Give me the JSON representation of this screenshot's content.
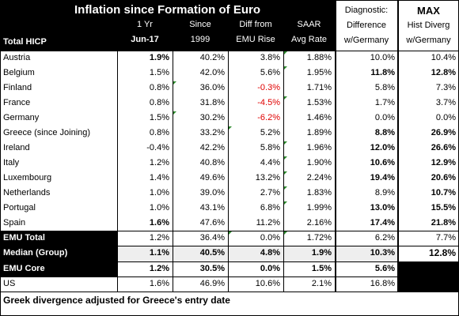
{
  "title": "Inflation since Formation of Euro",
  "headers": {
    "total_label": "Total HICP",
    "c1": [
      "1 Yr",
      "Jun-17"
    ],
    "c2": [
      "Since",
      "1999"
    ],
    "c3": [
      "Diff from",
      "EMU Rise"
    ],
    "c4": [
      "SAAR",
      "Avg Rate"
    ],
    "c5": [
      "Diagnostic:",
      "Difference",
      "w/Germany"
    ],
    "c6": [
      "MAX",
      "Hist Diverg",
      "w/Germany"
    ]
  },
  "rows": [
    {
      "name": "Austria",
      "v": [
        "1.9%",
        "40.2%",
        "3.8%",
        "1.88%",
        "10.0%",
        "10.4%"
      ]
    },
    {
      "name": "Belgium",
      "v": [
        "1.5%",
        "42.0%",
        "5.6%",
        "1.95%",
        "11.8%",
        "12.8%"
      ]
    },
    {
      "name": "Finland",
      "v": [
        "0.8%",
        "36.0%",
        "-0.3%",
        "1.71%",
        "5.8%",
        "7.3%"
      ]
    },
    {
      "name": "France",
      "v": [
        "0.8%",
        "31.8%",
        "-4.5%",
        "1.53%",
        "1.7%",
        "3.7%"
      ]
    },
    {
      "name": "Germany",
      "v": [
        "1.5%",
        "30.2%",
        "-6.2%",
        "1.46%",
        "0.0%",
        "0.0%"
      ]
    },
    {
      "name": "Greece (since Joining)",
      "v": [
        "0.8%",
        "33.2%",
        "5.2%",
        "1.89%",
        "8.8%",
        "26.9%"
      ]
    },
    {
      "name": "Ireland",
      "v": [
        "-0.4%",
        "42.2%",
        "5.8%",
        "1.96%",
        "12.0%",
        "26.6%"
      ]
    },
    {
      "name": "Italy",
      "v": [
        "1.2%",
        "40.8%",
        "4.4%",
        "1.90%",
        "10.6%",
        "12.9%"
      ]
    },
    {
      "name": "Luxembourg",
      "v": [
        "1.4%",
        "49.6%",
        "13.2%",
        "2.24%",
        "19.4%",
        "20.6%"
      ]
    },
    {
      "name": "Netherlands",
      "v": [
        "1.0%",
        "39.0%",
        "2.7%",
        "1.83%",
        "8.9%",
        "10.7%"
      ]
    },
    {
      "name": "Portugal",
      "v": [
        "1.0%",
        "43.1%",
        "6.8%",
        "1.99%",
        "13.0%",
        "15.5%"
      ]
    },
    {
      "name": "Spain",
      "v": [
        "1.6%",
        "47.6%",
        "11.2%",
        "2.16%",
        "17.4%",
        "21.8%"
      ]
    }
  ],
  "summary": [
    {
      "name": "EMU Total",
      "v": [
        "1.2%",
        "36.4%",
        "0.0%",
        "1.72%",
        "6.2%",
        "7.7%"
      ]
    },
    {
      "name": "Median (Group)",
      "v": [
        "1.1%",
        "40.5%",
        "4.8%",
        "1.9%",
        "10.3%",
        "12.8%"
      ]
    },
    {
      "name": "EMU Core",
      "v": [
        "1.2%",
        "30.5%",
        "0.0%",
        "1.5%",
        "5.6%",
        ""
      ]
    },
    {
      "name": "US",
      "v": [
        "1.6%",
        "46.9%",
        "10.6%",
        "2.1%",
        "16.8%",
        ""
      ]
    }
  ],
  "footnote": "Greek divergence adjusted for Greece's entry date",
  "colors": {
    "header_bg": "#000000",
    "negative": "#e00000",
    "band": "#eeeeee",
    "marker": "#2e8b2e"
  }
}
